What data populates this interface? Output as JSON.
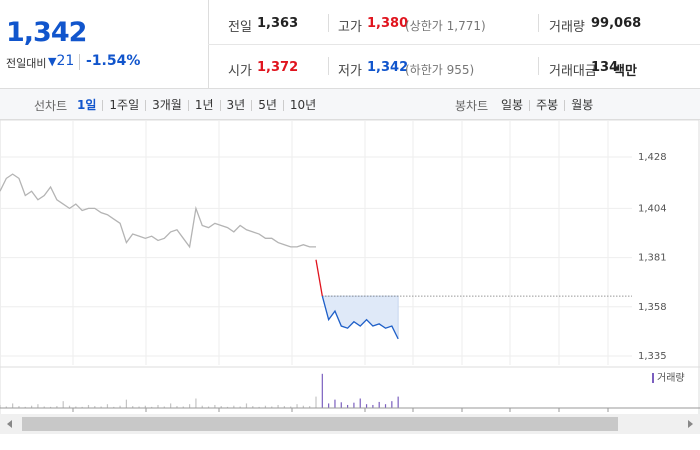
{
  "header": {
    "price": "1,342",
    "change_label": "전일대비",
    "change_value": "21",
    "change_pct": "-1.54%"
  },
  "info": {
    "rows": [
      [
        {
          "label": "전일",
          "value": "1,363"
        },
        {
          "label": "고가",
          "value": "1,380",
          "extra": "(상한가 1,771)"
        },
        {
          "label": "거래량",
          "value": "99,068"
        }
      ],
      [
        {
          "label": "시가",
          "value": "1,372"
        },
        {
          "label": "저가",
          "value": "1,342",
          "extra": "(하한가 955)"
        },
        {
          "label": "거래대금",
          "value": "134",
          "unit": "백만"
        }
      ]
    ]
  },
  "tabs": {
    "line_label": "선차트",
    "line_periods": [
      "1일",
      "1주일",
      "3개월",
      "1년",
      "3년",
      "5년",
      "10년"
    ],
    "candle_label": "봉차트",
    "candle_periods": [
      "일봉",
      "주봉",
      "월봉"
    ]
  },
  "chart_data": {
    "type": "line",
    "xlim": [
      0,
      100
    ],
    "ylim": [
      1335,
      1428
    ],
    "yticks": [
      {
        "value": 1428,
        "label": "1,428"
      },
      {
        "value": 1404,
        "label": "1,404"
      },
      {
        "value": 1381,
        "label": "1,381"
      },
      {
        "value": 1358,
        "label": "1,358"
      },
      {
        "value": 1335,
        "label": "1,335"
      }
    ],
    "reference_line": 1363,
    "series": [
      {
        "color": "#b4b4b4",
        "x": [
          0,
          1,
          2,
          3,
          4,
          5,
          6,
          7,
          8,
          9,
          10,
          11,
          12,
          13,
          14,
          15,
          16,
          17,
          18,
          19,
          20,
          21,
          22,
          23,
          24,
          25,
          26,
          27,
          28,
          29,
          30,
          31,
          32,
          33,
          34,
          35,
          36,
          37,
          38,
          39,
          40,
          41,
          42,
          43,
          44,
          45,
          46,
          47,
          48,
          49,
          50
        ],
        "values": [
          1412,
          1418,
          1420,
          1418,
          1410,
          1412,
          1408,
          1410,
          1414,
          1408,
          1406,
          1404,
          1406,
          1403,
          1404,
          1404,
          1402,
          1401,
          1399,
          1397,
          1388,
          1392,
          1391,
          1390,
          1391,
          1389,
          1390,
          1393,
          1394,
          1390,
          1386,
          1404,
          1396,
          1395,
          1397,
          1396,
          1395,
          1393,
          1396,
          1394,
          1393,
          1392,
          1390,
          1390,
          1388,
          1387,
          1386,
          1386,
          1387,
          1386,
          1386
        ]
      },
      {
        "color": "#e0141e",
        "x": [
          50,
          51
        ],
        "values": [
          1380,
          1363
        ]
      },
      {
        "color": "#1e5fc8",
        "x": [
          51,
          52,
          53,
          54,
          55,
          56,
          57,
          58,
          59,
          60,
          61,
          62,
          63
        ],
        "values": [
          1363,
          1352,
          1356,
          1349,
          1348,
          1351,
          1349,
          1352,
          1349,
          1350,
          1348,
          1349,
          1343
        ]
      }
    ],
    "volume": {
      "name": "거래량",
      "lim": [
        0,
        100
      ],
      "series": [
        {
          "color": "#c4c4c4",
          "x": [
            0,
            1,
            2,
            3,
            4,
            5,
            6,
            7,
            8,
            9,
            10,
            11,
            12,
            13,
            14,
            15,
            16,
            17,
            18,
            19,
            20,
            21,
            22,
            23,
            24,
            25,
            26,
            27,
            28,
            29,
            30,
            31,
            32,
            33,
            34,
            35,
            36,
            37,
            38,
            39,
            40,
            41,
            42,
            43,
            44,
            45,
            46,
            47,
            48,
            49,
            50
          ],
          "values": [
            8,
            4,
            12,
            5,
            3,
            6,
            10,
            4,
            3,
            5,
            18,
            6,
            4,
            3,
            8,
            5,
            4,
            10,
            3,
            6,
            22,
            5,
            4,
            6,
            3,
            8,
            4,
            12,
            5,
            4,
            10,
            25,
            6,
            4,
            8,
            5,
            3,
            6,
            4,
            12,
            5,
            3,
            6,
            4,
            8,
            5,
            4,
            10,
            6,
            5,
            30
          ]
        },
        {
          "color": "#7b5fbf",
          "x": [
            51,
            52,
            53,
            54,
            55,
            56,
            57,
            58,
            59,
            60,
            61,
            62,
            63
          ],
          "values": [
            90,
            12,
            22,
            15,
            8,
            14,
            25,
            10,
            8,
            16,
            10,
            18,
            30
          ]
        }
      ]
    }
  }
}
